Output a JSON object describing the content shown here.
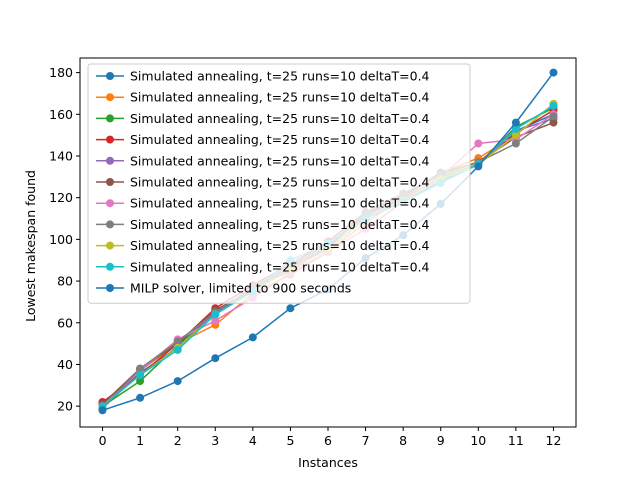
{
  "chart_data": {
    "type": "line",
    "title": "",
    "xlabel": "Instances",
    "ylabel": "Lowest makespan found",
    "x": [
      0,
      1,
      2,
      3,
      4,
      5,
      6,
      7,
      8,
      9,
      10,
      11,
      12
    ],
    "xlim": [
      -0.6,
      12.6
    ],
    "ylim": [
      10,
      187
    ],
    "yticks": [
      20,
      40,
      60,
      80,
      100,
      120,
      140,
      160,
      180
    ],
    "grid": false,
    "legend_position": "upper-left",
    "series": [
      {
        "name": "Simulated annealing, t=25 runs=10 deltaT=0.4",
        "color": "#1f77b4",
        "values": [
          19,
          36,
          48,
          65,
          76,
          87,
          95,
          110,
          118,
          128,
          136,
          152,
          160
        ]
      },
      {
        "name": "Simulated annealing, t=25 runs=10 deltaT=0.4",
        "color": "#ff7f0e",
        "values": [
          21,
          37,
          50,
          59,
          74,
          83,
          94,
          108,
          120,
          132,
          139,
          150,
          165
        ]
      },
      {
        "name": "Simulated annealing, t=25 runs=10 deltaT=0.4",
        "color": "#2ca02c",
        "values": [
          20,
          32,
          49,
          66,
          75,
          86,
          97,
          112,
          119,
          130,
          136,
          154,
          163
        ]
      },
      {
        "name": "Simulated annealing, t=25 runs=10 deltaT=0.4",
        "color": "#d62728",
        "values": [
          22,
          35,
          50,
          67,
          78,
          88,
          99,
          113,
          121,
          131,
          137,
          151,
          162
        ]
      },
      {
        "name": "Simulated annealing, t=25 runs=10 deltaT=0.4",
        "color": "#9467bd",
        "values": [
          20,
          37,
          51,
          64,
          77,
          87,
          98,
          111,
          120,
          129,
          136,
          152,
          158
        ]
      },
      {
        "name": "Simulated annealing, t=25 runs=10 deltaT=0.4",
        "color": "#8c564b",
        "values": [
          21,
          38,
          50,
          66,
          76,
          85,
          96,
          112,
          121,
          132,
          137,
          149,
          156
        ]
      },
      {
        "name": "Simulated annealing, t=25 runs=10 deltaT=0.4",
        "color": "#e377c2",
        "values": [
          20,
          37,
          52,
          61,
          72,
          84,
          94,
          105,
          118,
          130,
          146,
          148,
          160
        ]
      },
      {
        "name": "Simulated annealing, t=25 runs=10 deltaT=0.4",
        "color": "#7f7f7f",
        "values": [
          19,
          38,
          51,
          65,
          77,
          86,
          97,
          113,
          122,
          131,
          137,
          146,
          159
        ]
      },
      {
        "name": "Simulated annealing, t=25 runs=10 deltaT=0.4",
        "color": "#bcbd22",
        "values": [
          20,
          35,
          48,
          64,
          75,
          86,
          95,
          110,
          119,
          129,
          136,
          150,
          165
        ]
      },
      {
        "name": "Simulated annealing, t=25 runs=10 deltaT=0.4",
        "color": "#17becf",
        "values": [
          20,
          35,
          47,
          64,
          75,
          90,
          98,
          110,
          118,
          127,
          136,
          153,
          164
        ]
      },
      {
        "name": "MILP solver, limited to 900 seconds",
        "color": "#1f77b4",
        "values": [
          18,
          24,
          32,
          43,
          53,
          67,
          76,
          91,
          102,
          117,
          135,
          156,
          180
        ]
      }
    ]
  }
}
